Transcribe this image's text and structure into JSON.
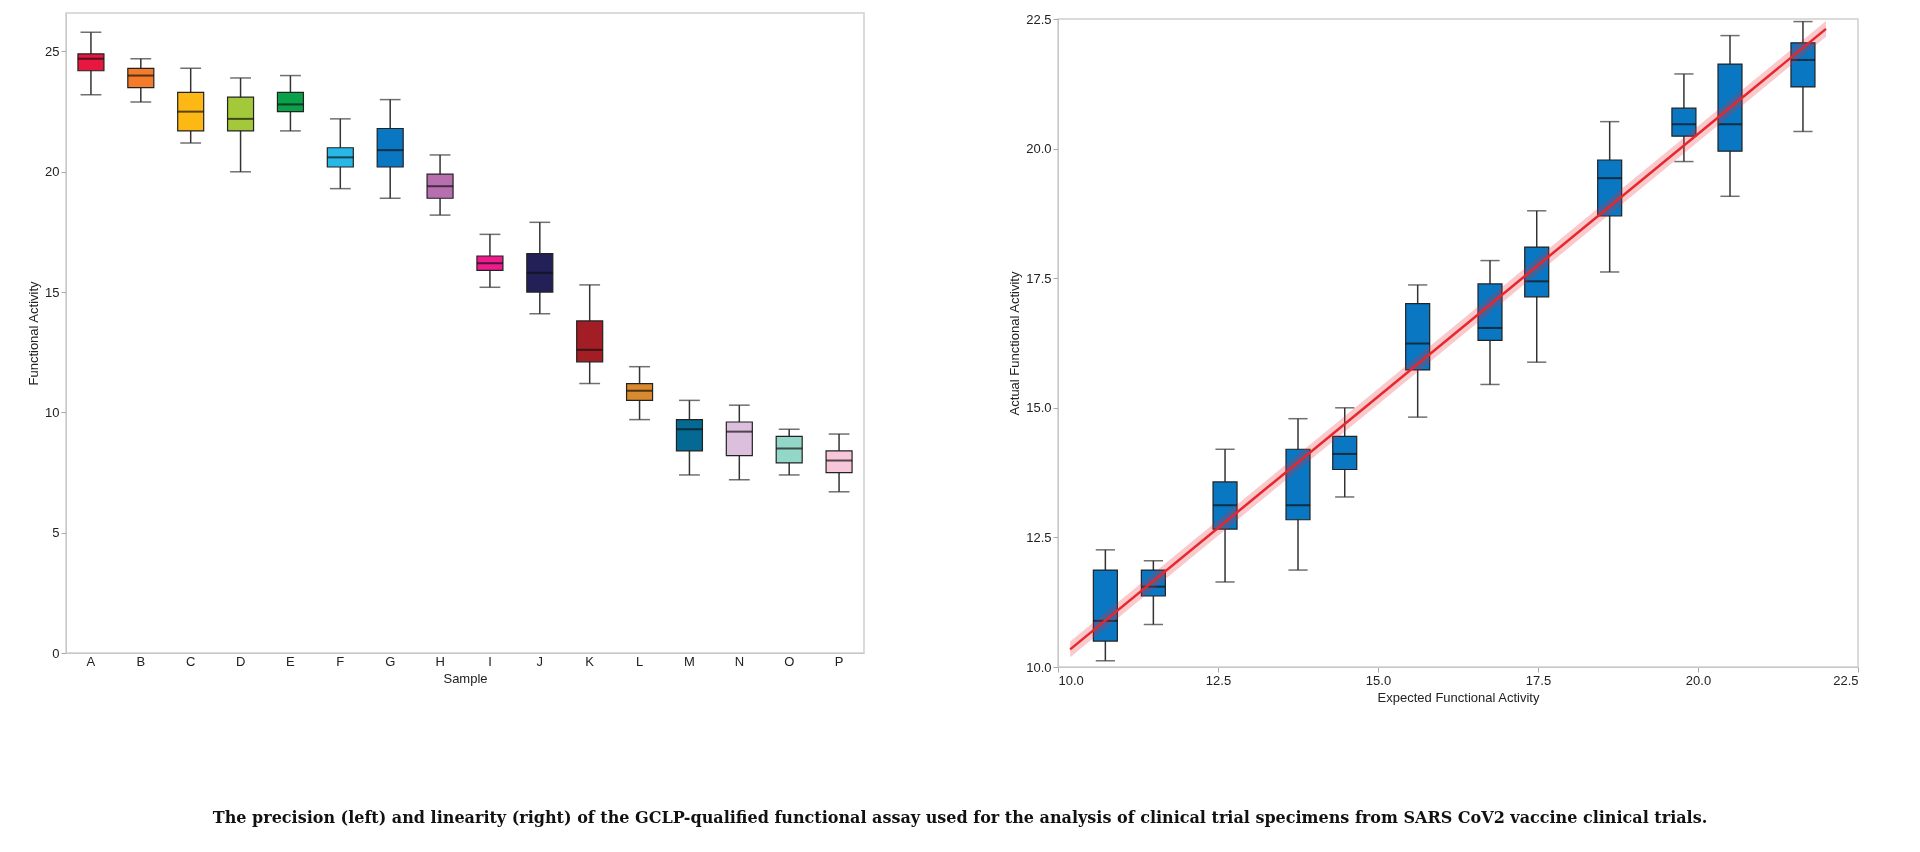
{
  "chart_data": [
    {
      "type": "box",
      "xlabel": "Sample",
      "ylabel": "Functional Activity",
      "categories": [
        "A",
        "B",
        "C",
        "D",
        "E",
        "F",
        "G",
        "H",
        "I",
        "J",
        "K",
        "L",
        "M",
        "N",
        "O",
        "P"
      ],
      "colors": [
        "#e8173f",
        "#f47b2a",
        "#fdb813",
        "#a3c93a",
        "#0aa14b",
        "#27b8e8",
        "#0a77c2",
        "#b76fb0",
        "#ec1c8c",
        "#232057",
        "#a31d24",
        "#d9892e",
        "#046a93",
        "#dcbfdd",
        "#93d7c8",
        "#f7c6d8"
      ],
      "boxes": [
        {
          "low": 23.2,
          "q1": 24.2,
          "median": 24.7,
          "q3": 24.9,
          "high": 25.8
        },
        {
          "low": 22.9,
          "q1": 23.5,
          "median": 24.0,
          "q3": 24.3,
          "high": 24.7
        },
        {
          "low": 21.2,
          "q1": 21.7,
          "median": 22.5,
          "q3": 23.3,
          "high": 24.3
        },
        {
          "low": 20.0,
          "q1": 21.7,
          "median": 22.2,
          "q3": 23.1,
          "high": 23.9
        },
        {
          "low": 21.7,
          "q1": 22.5,
          "median": 22.8,
          "q3": 23.3,
          "high": 24.0
        },
        {
          "low": 19.3,
          "q1": 20.2,
          "median": 20.6,
          "q3": 21.0,
          "high": 22.2
        },
        {
          "low": 18.9,
          "q1": 20.2,
          "median": 20.9,
          "q3": 21.8,
          "high": 23.0
        },
        {
          "low": 18.2,
          "q1": 18.9,
          "median": 19.4,
          "q3": 19.9,
          "high": 20.7
        },
        {
          "low": 15.2,
          "q1": 15.9,
          "median": 16.2,
          "q3": 16.5,
          "high": 17.4
        },
        {
          "low": 14.1,
          "q1": 15.0,
          "median": 15.8,
          "q3": 16.6,
          "high": 17.9
        },
        {
          "low": 11.2,
          "q1": 12.1,
          "median": 12.6,
          "q3": 13.8,
          "high": 15.3
        },
        {
          "low": 9.7,
          "q1": 10.5,
          "median": 10.9,
          "q3": 11.2,
          "high": 11.9
        },
        {
          "low": 7.4,
          "q1": 8.4,
          "median": 9.3,
          "q3": 9.7,
          "high": 10.5
        },
        {
          "low": 7.2,
          "q1": 8.2,
          "median": 9.2,
          "q3": 9.6,
          "high": 10.3
        },
        {
          "low": 7.4,
          "q1": 7.9,
          "median": 8.5,
          "q3": 9.0,
          "high": 9.3
        },
        {
          "low": 6.7,
          "q1": 7.5,
          "median": 8.0,
          "q3": 8.4,
          "high": 9.1
        }
      ],
      "ylim": [
        0,
        26.6
      ],
      "yticks": [
        0,
        5,
        10,
        15,
        20,
        25
      ],
      "grid": false,
      "annotations": [
        "The precision (left) and linearity (right) of the GCLP-qualified functional assay used for the analysis of clinical trial specimens from SARS CoV2 vaccine clinical trials."
      ]
    },
    {
      "type": "box",
      "xlabel": "Expected Functional Activity",
      "ylabel": "Actual Functional Activity",
      "grid": false,
      "xlim": [
        10,
        22.5
      ],
      "xticks": [
        {
          "value": 10,
          "label": "10.0"
        },
        {
          "value": 12.5,
          "label": "12.5"
        },
        {
          "value": 15,
          "label": "15.0"
        },
        {
          "value": 17.5,
          "label": "17.5"
        },
        {
          "value": 20,
          "label": "20.0"
        },
        {
          "value": 22.5,
          "label": "22.5"
        }
      ],
      "ylim": [
        10,
        22.5
      ],
      "yticks": [
        {
          "value": 10,
          "label": "10.0"
        },
        {
          "value": 12.5,
          "label": "12.5"
        },
        {
          "value": 15,
          "label": "15.0"
        },
        {
          "value": 17.5,
          "label": "17.5"
        },
        {
          "value": 20,
          "label": "20.0"
        },
        {
          "value": 22.5,
          "label": "22.5"
        }
      ],
      "series": [
        {
          "type": "box",
          "color": "#0a77c2",
          "x": [
            10.74,
            11.49,
            12.61,
            13.75,
            14.48,
            15.62,
            16.75,
            17.48,
            18.62,
            19.78,
            20.5,
            21.64
          ],
          "boxes": [
            {
              "low": 10.12,
              "q1": 10.5,
              "median": 10.89,
              "q3": 11.87,
              "high": 12.26
            },
            {
              "low": 10.82,
              "q1": 11.37,
              "median": 11.55,
              "q3": 11.87,
              "high": 12.05
            },
            {
              "low": 11.64,
              "q1": 12.66,
              "median": 13.12,
              "q3": 13.57,
              "high": 14.2
            },
            {
              "low": 11.87,
              "q1": 12.84,
              "median": 13.12,
              "q3": 14.2,
              "high": 14.79
            },
            {
              "low": 13.28,
              "q1": 13.81,
              "median": 14.11,
              "q3": 14.45,
              "high": 15.0
            },
            {
              "low": 14.82,
              "q1": 15.73,
              "median": 16.24,
              "q3": 17.01,
              "high": 17.37
            },
            {
              "low": 15.45,
              "q1": 16.3,
              "median": 16.54,
              "q3": 17.39,
              "high": 17.84
            },
            {
              "low": 15.88,
              "q1": 17.14,
              "median": 17.44,
              "q3": 18.1,
              "high": 18.8
            },
            {
              "low": 17.62,
              "q1": 18.7,
              "median": 19.43,
              "q3": 19.78,
              "high": 20.52
            },
            {
              "low": 19.75,
              "q1": 20.24,
              "median": 20.47,
              "q3": 20.78,
              "high": 21.44
            },
            {
              "low": 19.08,
              "q1": 19.95,
              "median": 20.47,
              "q3": 21.63,
              "high": 22.18
            },
            {
              "low": 20.33,
              "q1": 21.19,
              "median": 21.71,
              "q3": 22.04,
              "high": 22.45
            }
          ]
        },
        {
          "type": "line",
          "color": "#e8262e",
          "x": [
            10.19,
            22.0
          ],
          "values": [
            10.34,
            22.31
          ],
          "lower": [
            10.19,
            22.16
          ],
          "upper": [
            10.49,
            22.46
          ]
        }
      ]
    }
  ]
}
